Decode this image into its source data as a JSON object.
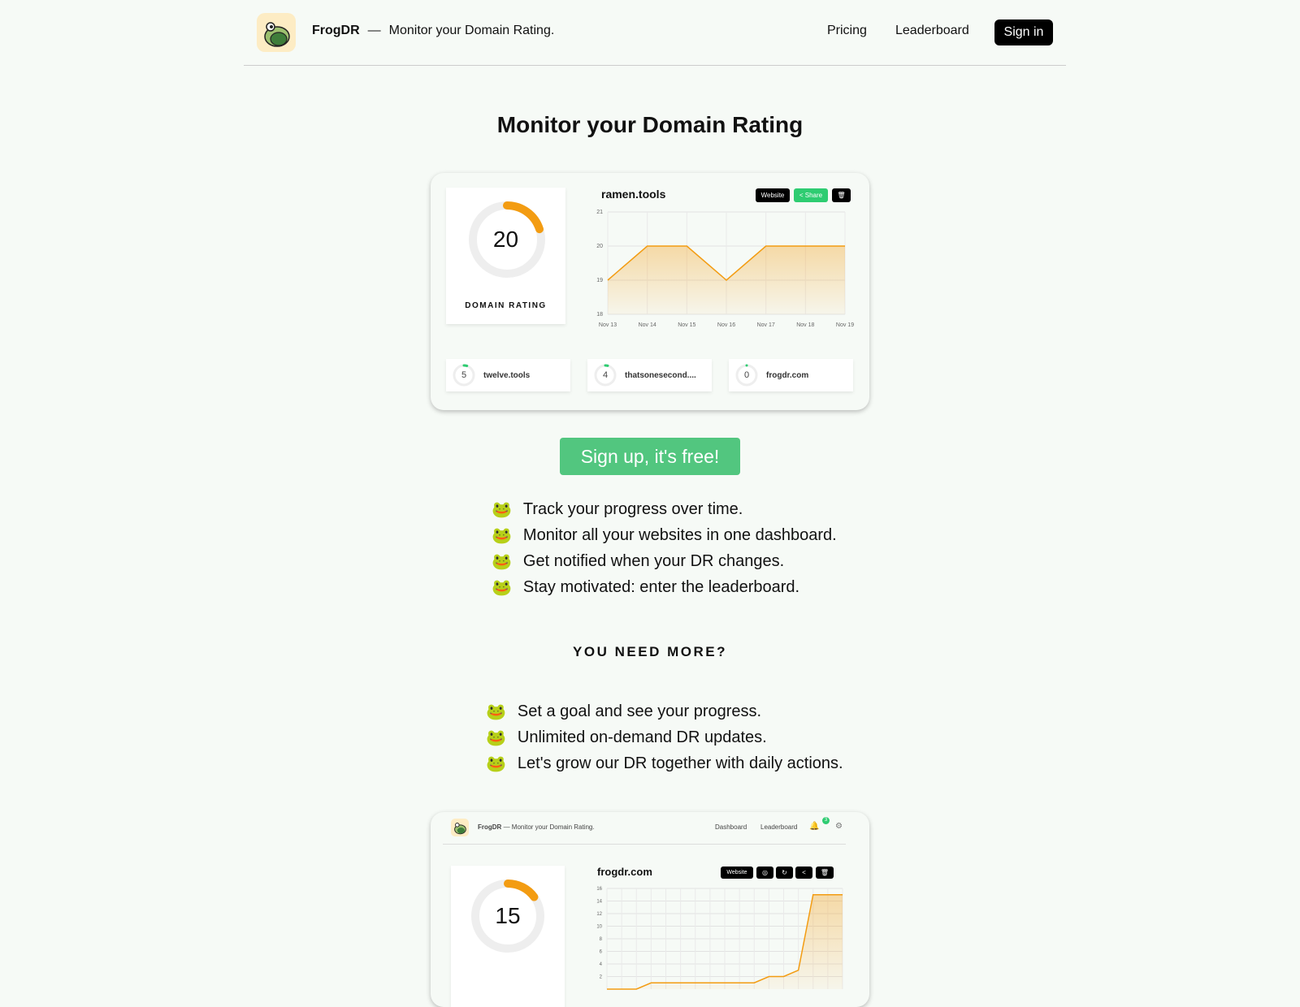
{
  "header": {
    "brand": "FrogDR",
    "dash": "—",
    "tagline": "Monitor your Domain Rating.",
    "nav": [
      "Pricing",
      "Leaderboard"
    ],
    "signin": "Sign in"
  },
  "hero": {
    "title": "Monitor your Domain Rating"
  },
  "preview1": {
    "dr": "20",
    "dr_label": "DOMAIN RATING",
    "site": "ramen.tools",
    "buttons": {
      "website": "Website",
      "share": "Share"
    },
    "chart_data": {
      "type": "area",
      "x": [
        "Nov 13",
        "Nov 14",
        "Nov 15",
        "Nov 16",
        "Nov 17",
        "Nov 18",
        "Nov 19"
      ],
      "values": [
        19,
        20,
        20,
        19,
        20,
        20,
        20
      ],
      "ylim": [
        18,
        21
      ],
      "yticks": [
        "18",
        "19",
        "20",
        "21"
      ],
      "color": "#f39c12"
    },
    "others": [
      {
        "dr": "5",
        "name": "twelve.tools"
      },
      {
        "dr": "4",
        "name": "thatsonesecond...."
      },
      {
        "dr": "0",
        "name": "frogdr.com"
      }
    ]
  },
  "cta": "Sign up, it's free!",
  "features": [
    "Track your progress over time.",
    "Monitor all your websites in one dashboard.",
    "Get notified when your DR changes.",
    "Stay motivated: enter the leaderboard."
  ],
  "more_title": "YOU NEED MORE?",
  "more_features": [
    "Set a goal and see your progress.",
    "Unlimited on-demand DR updates.",
    "Let's grow our DR together with daily actions."
  ],
  "emoji": "🐸",
  "preview2": {
    "brand": "FrogDR",
    "tagline": "— Monitor your Domain Rating.",
    "nav": [
      "Dashboard",
      "Leaderboard"
    ],
    "notif_count": "3",
    "dr": "15",
    "site": "frogdr.com",
    "website": "Website",
    "chart_data": {
      "type": "area",
      "values": [
        0,
        0,
        0,
        1,
        1,
        1,
        1,
        1,
        1,
        1,
        1,
        2,
        2,
        3,
        15,
        15,
        15
      ],
      "ylim": [
        0,
        16
      ],
      "yticks": [
        "2",
        "4",
        "6",
        "8",
        "10",
        "12",
        "14",
        "16"
      ],
      "color": "#f39c12"
    }
  },
  "colors": {
    "accent": "#f39c12",
    "green": "#52c67f",
    "bg": "#f6faf6"
  }
}
